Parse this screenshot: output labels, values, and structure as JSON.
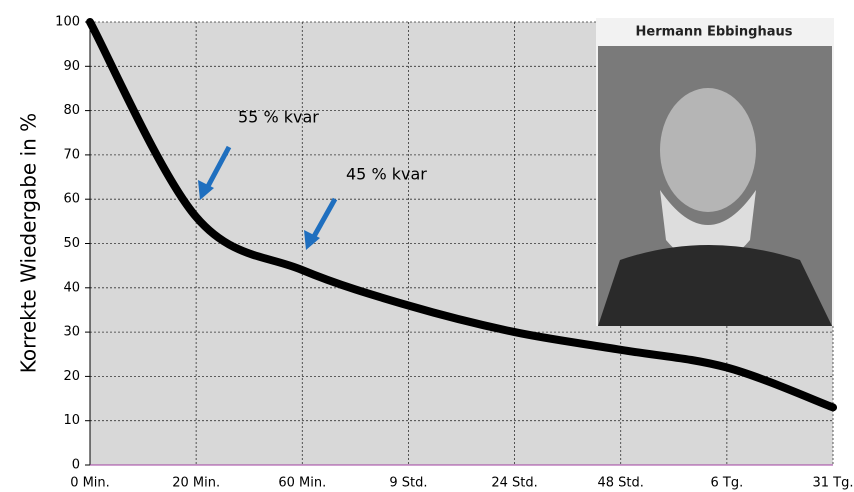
{
  "chart_data": {
    "type": "line",
    "y_label": "Korrekte Wiedergabe in %",
    "categories": [
      "0 Min.",
      "20 Min.",
      "60 Min.",
      "9 Std.",
      "24 Std.",
      "48 Std.",
      "6 Tg.",
      "31 Tg."
    ],
    "values": [
      100,
      56,
      44,
      36,
      30,
      26,
      22,
      13
    ],
    "color": "#000000",
    "ylim": [
      0,
      100
    ],
    "yticks": [
      0,
      10,
      20,
      30,
      40,
      50,
      60,
      70,
      80,
      90,
      100
    ],
    "grid": true,
    "annotations": [
      "55 % kvar",
      "45 % kvar"
    ],
    "image_caption": "Hermann Ebbinghaus"
  }
}
